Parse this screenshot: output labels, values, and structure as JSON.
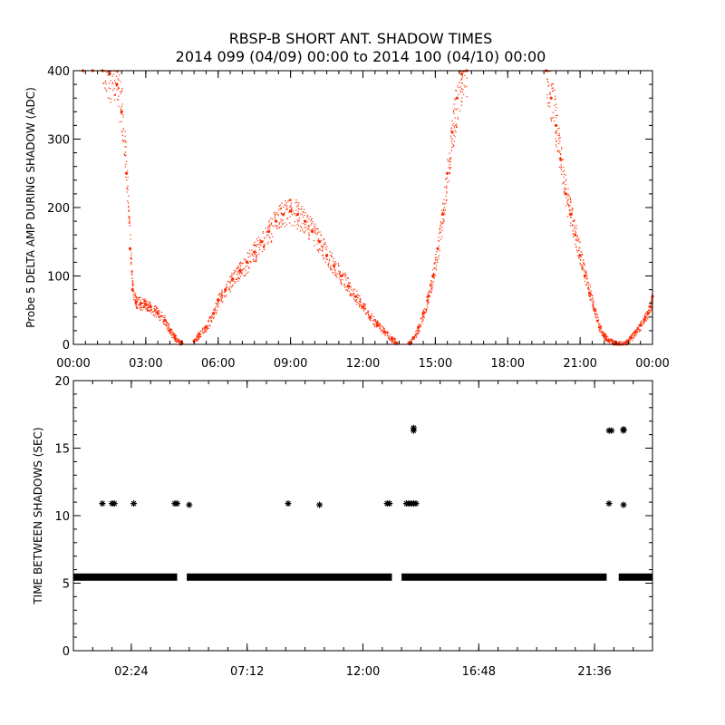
{
  "title_line1": "RBSP-B SHORT ANT. SHADOW TIMES",
  "title_line2": "2014 099 (04/09) 00:00 to 2014 100 (04/10) 00:00",
  "chart_data": [
    {
      "type": "scatter",
      "ylabel": "Probe 5 DELTA AMP DURING SHADOW (ADC)",
      "xlim": [
        0,
        24
      ],
      "ylim": [
        0,
        400
      ],
      "x_ticks": [
        0,
        3,
        6,
        9,
        12,
        15,
        18,
        21,
        24
      ],
      "x_tick_labels": [
        "00:00",
        "03:00",
        "06:00",
        "09:00",
        "12:00",
        "15:00",
        "18:00",
        "21:00",
        "00:00"
      ],
      "y_ticks": [
        0,
        100,
        200,
        300,
        400
      ],
      "y_tick_labels": [
        "0",
        "100",
        "200",
        "300",
        "400"
      ],
      "marker": "dot",
      "color": "#ff2a00",
      "series": [
        {
          "x": [
            0.4,
            0.8,
            1.2,
            1.5,
            1.8,
            2.0,
            2.2,
            2.35,
            2.45,
            2.6,
            2.8,
            3.0,
            3.2,
            3.5,
            3.8,
            4.0,
            4.2,
            4.4,
            4.5,
            5.0,
            5.2,
            5.5,
            5.8,
            6.0,
            6.3,
            6.6,
            6.9,
            7.2,
            7.5,
            7.8,
            8.1,
            8.4,
            8.7,
            9.0,
            9.3,
            9.6,
            9.9,
            10.2,
            10.5,
            10.8,
            11.1,
            11.4,
            11.7,
            12.0,
            12.3,
            12.6,
            12.9,
            13.2,
            13.4,
            13.9,
            14.1,
            14.3,
            14.5,
            14.7,
            14.9,
            15.1,
            15.3,
            15.5,
            15.7,
            15.9,
            16.1,
            16.3,
            19.6,
            19.8,
            20.0,
            20.2,
            20.4,
            20.6,
            20.8,
            21.0,
            21.2,
            21.4,
            21.6,
            21.8,
            22.0,
            22.2,
            22.4,
            22.6,
            22.9,
            23.1,
            23.3,
            23.5,
            23.7,
            23.9,
            24.0
          ],
          "y": [
            400,
            400,
            400,
            395,
            380,
            340,
            250,
            140,
            80,
            62,
            60,
            58,
            55,
            45,
            35,
            20,
            10,
            4,
            2,
            5,
            15,
            25,
            45,
            65,
            80,
            95,
            108,
            120,
            135,
            150,
            165,
            180,
            190,
            195,
            190,
            180,
            165,
            150,
            130,
            115,
            100,
            85,
            70,
            55,
            40,
            28,
            18,
            8,
            2,
            2,
            10,
            25,
            45,
            70,
            100,
            140,
            190,
            250,
            310,
            360,
            395,
            400,
            400,
            360,
            320,
            270,
            220,
            190,
            160,
            130,
            100,
            75,
            50,
            25,
            12,
            5,
            2,
            1,
            3,
            10,
            18,
            28,
            40,
            55,
            70
          ]
        }
      ]
    },
    {
      "type": "scatter",
      "ylabel": "TIME BETWEEN SHADOWS (SEC)",
      "xlim": [
        0,
        24
      ],
      "ylim": [
        0,
        20
      ],
      "x_ticks": [
        2.4,
        7.2,
        12.0,
        16.8,
        21.6
      ],
      "x_tick_labels": [
        "02:24",
        "07:12",
        "12:00",
        "16:48",
        "21:36"
      ],
      "y_ticks": [
        0,
        5,
        10,
        15,
        20
      ],
      "y_tick_labels": [
        "0",
        "5",
        "10",
        "15",
        "20"
      ],
      "marker": "asterisk",
      "color": "#000000",
      "baseline": {
        "y": 5.45,
        "segments": [
          [
            0.0,
            4.3
          ],
          [
            4.7,
            13.2
          ],
          [
            13.6,
            22.1
          ],
          [
            22.6,
            24.0
          ]
        ]
      },
      "series": [
        {
          "x": [
            1.2,
            1.6,
            1.7,
            2.5,
            4.2,
            4.3,
            4.8,
            8.9,
            10.2,
            13.0,
            13.1,
            13.8,
            13.9,
            14.0,
            14.1,
            14.2,
            14.1,
            14.1,
            22.2,
            22.3,
            22.2,
            22.8,
            22.8,
            22.8
          ],
          "y": [
            10.9,
            10.9,
            10.9,
            10.9,
            10.9,
            10.9,
            10.8,
            10.9,
            10.8,
            10.9,
            10.9,
            10.9,
            10.9,
            10.9,
            10.9,
            10.9,
            16.3,
            16.5,
            16.3,
            16.3,
            10.9,
            10.8,
            16.3,
            16.4
          ]
        }
      ]
    }
  ]
}
